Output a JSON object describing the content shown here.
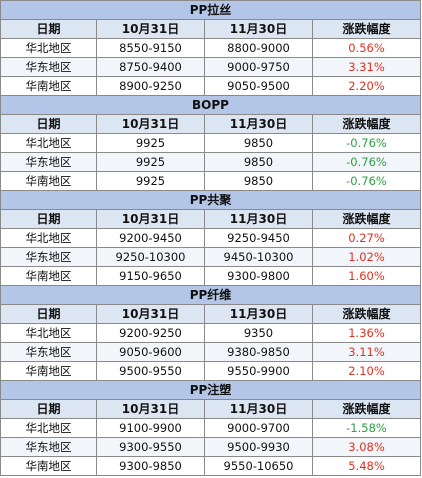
{
  "headers": [
    "日期",
    "10月31日",
    "11月30日",
    "涨跌幅度"
  ],
  "sections": [
    {
      "title": "PP拉丝",
      "rows": [
        {
          "region": "华北地区",
          "oct31": "8550-9150",
          "nov30": "8800-9000",
          "change": "0.56%",
          "dir": "up"
        },
        {
          "region": "华东地区",
          "oct31": "8750-9400",
          "nov30": "9000-9750",
          "change": "3.31%",
          "dir": "up"
        },
        {
          "region": "华南地区",
          "oct31": "8900-9250",
          "nov30": "9050-9500",
          "change": "2.20%",
          "dir": "up"
        }
      ]
    },
    {
      "title": "BOPP",
      "rows": [
        {
          "region": "华北地区",
          "oct31": "9925",
          "nov30": "9850",
          "change": "-0.76%",
          "dir": "down"
        },
        {
          "region": "华东地区",
          "oct31": "9925",
          "nov30": "9850",
          "change": "-0.76%",
          "dir": "down"
        },
        {
          "region": "华南地区",
          "oct31": "9925",
          "nov30": "9850",
          "change": "-0.76%",
          "dir": "down"
        }
      ]
    },
    {
      "title": "PP共聚",
      "rows": [
        {
          "region": "华北地区",
          "oct31": "9200-9450",
          "nov30": "9250-9450",
          "change": "0.27%",
          "dir": "up"
        },
        {
          "region": "华东地区",
          "oct31": "9250-10300",
          "nov30": "9450-10300",
          "change": "1.02%",
          "dir": "up"
        },
        {
          "region": "华南地区",
          "oct31": "9150-9650",
          "nov30": "9300-9800",
          "change": "1.60%",
          "dir": "up"
        }
      ]
    },
    {
      "title": "PP纤维",
      "rows": [
        {
          "region": "华北地区",
          "oct31": "9200-9250",
          "nov30": "9350",
          "change": "1.36%",
          "dir": "up"
        },
        {
          "region": "华东地区",
          "oct31": "9050-9600",
          "nov30": "9380-9850",
          "change": "3.11%",
          "dir": "up"
        },
        {
          "region": "华南地区",
          "oct31": "9500-9550",
          "nov30": "9550-9900",
          "change": "2.10%",
          "dir": "up"
        }
      ]
    },
    {
      "title": "PP注塑",
      "rows": [
        {
          "region": "华北地区",
          "oct31": "9100-9900",
          "nov30": "9000-9700",
          "change": "-1.58%",
          "dir": "down"
        },
        {
          "region": "华东地区",
          "oct31": "9300-9550",
          "nov30": "9500-9930",
          "change": "3.08%",
          "dir": "up"
        },
        {
          "region": "华南地区",
          "oct31": "9300-9850",
          "nov30": "9550-10650",
          "change": "5.48%",
          "dir": "up"
        }
      ]
    }
  ],
  "colors": {
    "up": "#e0301e",
    "down": "#2f9e44",
    "title_bg": "#b3c6e7",
    "header_bg": "#dce6f3"
  }
}
